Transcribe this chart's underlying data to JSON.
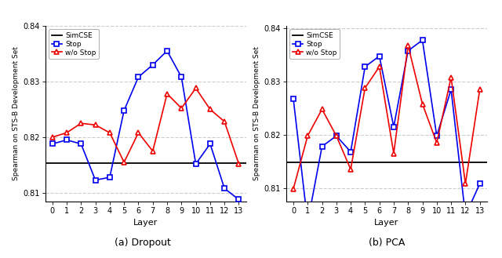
{
  "layers": [
    0,
    1,
    2,
    3,
    4,
    5,
    6,
    7,
    8,
    9,
    10,
    11,
    12,
    13
  ],
  "dropout_simcse": 0.8153,
  "dropout_stop": [
    0.8188,
    0.8195,
    0.8188,
    0.8123,
    0.8128,
    0.8248,
    0.8308,
    0.833,
    0.8355,
    0.8308,
    0.8152,
    0.8188,
    0.8108,
    0.8088
  ],
  "dropout_wo_stop": [
    0.82,
    0.8208,
    0.8225,
    0.8222,
    0.8208,
    0.8155,
    0.8208,
    0.8175,
    0.8278,
    0.8252,
    0.8288,
    0.825,
    0.8228,
    0.8152
  ],
  "pca_simcse": 0.8148,
  "pca_stop": [
    0.8268,
    0.8035,
    0.8178,
    0.8198,
    0.8168,
    0.8328,
    0.8348,
    0.8215,
    0.8358,
    0.8378,
    0.8198,
    0.8285,
    0.8048,
    0.8108
  ],
  "pca_wo_stop": [
    0.8098,
    0.8198,
    0.8248,
    0.8198,
    0.8135,
    0.8288,
    0.8328,
    0.8165,
    0.8368,
    0.8258,
    0.8185,
    0.8308,
    0.8108,
    0.8285
  ],
  "simcse_color": "#000000",
  "stop_color": "#0000ee",
  "wo_stop_color": "#ee0000",
  "background_color": "#ffffff",
  "ylabel": "Spearman on STS-B Development Set",
  "xlabel": "Layer",
  "caption_a": "(a) Dropout",
  "caption_b": "(b) PCA",
  "ylim_a": [
    0.8085,
    0.8375
  ],
  "ylim_b": [
    0.8075,
    0.8405
  ],
  "yticks": [
    0.81,
    0.82,
    0.83,
    0.84
  ]
}
